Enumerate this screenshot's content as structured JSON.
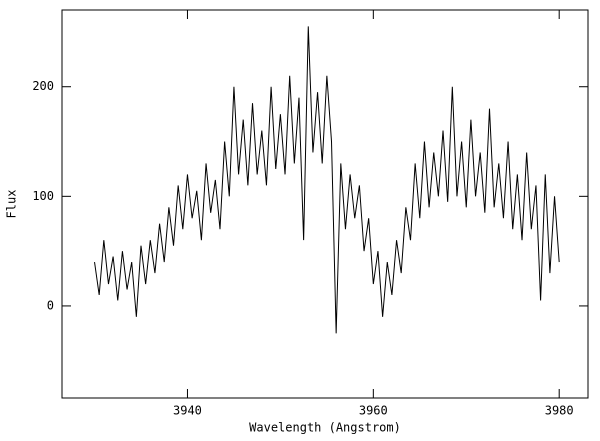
{
  "chart_data": {
    "type": "line",
    "xlabel": "Wavelength (Angstrom)",
    "ylabel": "Flux",
    "xlim": [
      3926.5,
      3983.1
    ],
    "ylim": [
      -84,
      270
    ],
    "xticks": [
      3940,
      3960,
      3980
    ],
    "yticks": [
      0,
      100,
      200
    ],
    "series": [
      {
        "color": "#000000",
        "x": [
          3930,
          3930.5,
          3931,
          3931.5,
          3932,
          3932.5,
          3933,
          3933.5,
          3934,
          3934.5,
          3935,
          3935.5,
          3936,
          3936.5,
          3937,
          3937.5,
          3938,
          3938.5,
          3939,
          3939.5,
          3940,
          3940.5,
          3941,
          3941.5,
          3942,
          3942.5,
          3943,
          3943.5,
          3944,
          3944.5,
          3945,
          3945.5,
          3946,
          3946.5,
          3947,
          3947.5,
          3948,
          3948.5,
          3949,
          3949.5,
          3950,
          3950.5,
          3951,
          3951.5,
          3952,
          3952.5,
          3953,
          3953.5,
          3954,
          3954.5,
          3955,
          3955.5,
          3956,
          3956.5,
          3957,
          3957.5,
          3958,
          3958.5,
          3959,
          3959.5,
          3960,
          3960.5,
          3961,
          3961.5,
          3962,
          3962.5,
          3963,
          3963.5,
          3964,
          3964.5,
          3965,
          3965.5,
          3966,
          3966.5,
          3967,
          3967.5,
          3968,
          3968.5,
          3969,
          3969.5,
          3970,
          3970.5,
          3971,
          3971.5,
          3972,
          3972.5,
          3973,
          3973.5,
          3974,
          3974.5,
          3975,
          3975.5,
          3976,
          3976.5,
          3977,
          3977.5,
          3978,
          3978.5,
          3979,
          3979.5,
          3980
        ],
        "values": [
          40,
          10,
          60,
          20,
          45,
          5,
          50,
          15,
          40,
          -10,
          55,
          20,
          60,
          30,
          75,
          40,
          90,
          55,
          110,
          70,
          120,
          80,
          105,
          60,
          130,
          85,
          115,
          70,
          150,
          100,
          200,
          120,
          170,
          110,
          185,
          120,
          160,
          110,
          200,
          125,
          175,
          120,
          210,
          130,
          190,
          60,
          255,
          140,
          195,
          130,
          210,
          150,
          -25,
          130,
          70,
          120,
          80,
          110,
          50,
          80,
          20,
          50,
          -10,
          40,
          10,
          60,
          30,
          90,
          60,
          130,
          80,
          150,
          90,
          140,
          100,
          160,
          95,
          200,
          100,
          150,
          90,
          170,
          100,
          140,
          85,
          180,
          90,
          130,
          80,
          150,
          70,
          120,
          60,
          140,
          70,
          110,
          5,
          120,
          30,
          100,
          40
        ]
      }
    ]
  }
}
